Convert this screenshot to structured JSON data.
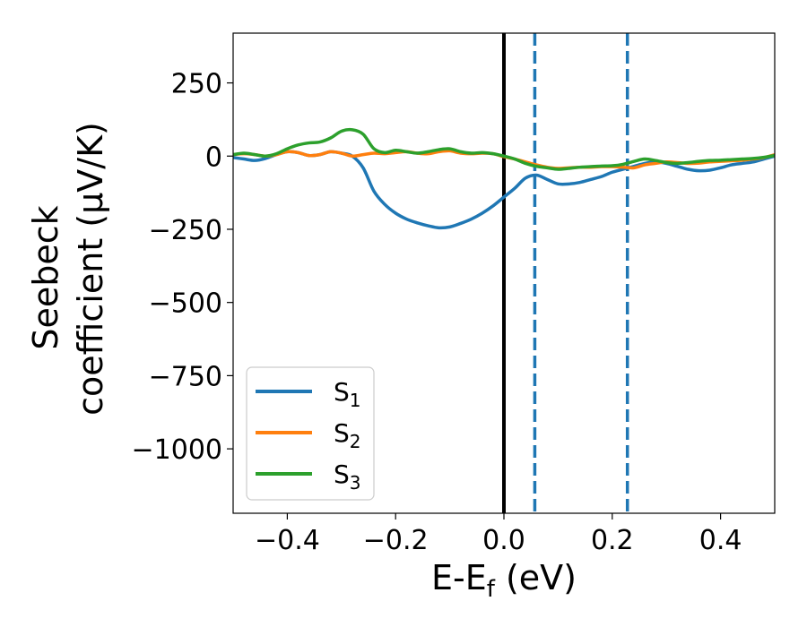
{
  "chart_data": {
    "type": "line",
    "title": "",
    "xlabel": "E-E",
    "xlabel_sub": "f",
    "xlabel_unit": " (eV)",
    "ylabel_line1": "Seebeck",
    "ylabel_line2": "coefficient  (μV/K)",
    "xlim": [
      -0.5,
      0.5
    ],
    "ylim": [
      -1220,
      420
    ],
    "xticks": [
      -0.4,
      -0.2,
      0.0,
      0.2,
      0.4
    ],
    "xtick_labels": [
      "−0.4",
      "−0.2",
      "0.0",
      "0.2",
      "0.4"
    ],
    "yticks": [
      250,
      0,
      -250,
      -500,
      -750,
      -1000
    ],
    "ytick_labels": [
      "250",
      "0",
      "−250",
      "−500",
      "−750",
      "−1000"
    ],
    "grid": false,
    "legend_position": "bottom-left",
    "vlines": [
      {
        "x": 0.0,
        "style": "solid",
        "color": "#000000"
      },
      {
        "x": 0.057,
        "style": "dashed",
        "color": "#1f77b4"
      },
      {
        "x": 0.228,
        "style": "dashed",
        "color": "#1f77b4"
      }
    ],
    "series": [
      {
        "name": "S",
        "sub": "1",
        "color": "#1f77b4",
        "x": [
          -0.5,
          -0.48,
          -0.46,
          -0.44,
          -0.42,
          -0.4,
          -0.38,
          -0.36,
          -0.34,
          -0.32,
          -0.3,
          -0.28,
          -0.26,
          -0.24,
          -0.22,
          -0.2,
          -0.18,
          -0.16,
          -0.14,
          -0.12,
          -0.1,
          -0.08,
          -0.06,
          -0.04,
          -0.02,
          0.0,
          0.02,
          0.04,
          0.06,
          0.08,
          0.1,
          0.12,
          0.14,
          0.16,
          0.18,
          0.2,
          0.22,
          0.24,
          0.26,
          0.28,
          0.3,
          0.32,
          0.34,
          0.36,
          0.38,
          0.4,
          0.42,
          0.44,
          0.46,
          0.48,
          0.5
        ],
        "y": [
          -5,
          -10,
          -15,
          -8,
          5,
          15,
          12,
          2,
          5,
          15,
          10,
          0,
          -40,
          -120,
          -165,
          -195,
          -215,
          -228,
          -238,
          -245,
          -242,
          -230,
          -215,
          -195,
          -170,
          -140,
          -110,
          -75,
          -65,
          -80,
          -95,
          -95,
          -90,
          -80,
          -70,
          -55,
          -45,
          -35,
          -25,
          -20,
          -25,
          -35,
          -45,
          -50,
          -48,
          -40,
          -30,
          -25,
          -20,
          -10,
          0
        ]
      },
      {
        "name": "S",
        "sub": "2",
        "color": "#ff7f0e",
        "x": [
          -0.5,
          -0.48,
          -0.46,
          -0.44,
          -0.42,
          -0.4,
          -0.38,
          -0.36,
          -0.34,
          -0.32,
          -0.3,
          -0.28,
          -0.26,
          -0.24,
          -0.22,
          -0.2,
          -0.18,
          -0.16,
          -0.14,
          -0.12,
          -0.1,
          -0.08,
          -0.06,
          -0.04,
          -0.02,
          0.0,
          0.02,
          0.04,
          0.06,
          0.08,
          0.1,
          0.12,
          0.14,
          0.16,
          0.18,
          0.2,
          0.22,
          0.24,
          0.26,
          0.28,
          0.3,
          0.32,
          0.34,
          0.36,
          0.38,
          0.4,
          0.42,
          0.44,
          0.46,
          0.48,
          0.5
        ],
        "y": [
          5,
          8,
          5,
          0,
          5,
          15,
          12,
          2,
          5,
          15,
          10,
          0,
          5,
          10,
          8,
          12,
          15,
          10,
          8,
          15,
          18,
          10,
          8,
          10,
          8,
          -2,
          -10,
          -20,
          -30,
          -38,
          -42,
          -40,
          -38,
          -38,
          -36,
          -36,
          -38,
          -40,
          -30,
          -25,
          -20,
          -22,
          -25,
          -24,
          -20,
          -18,
          -16,
          -14,
          -10,
          -5,
          5
        ]
      },
      {
        "name": "S",
        "sub": "3",
        "color": "#2ca02c",
        "x": [
          -0.5,
          -0.48,
          -0.46,
          -0.44,
          -0.42,
          -0.4,
          -0.38,
          -0.36,
          -0.34,
          -0.32,
          -0.3,
          -0.28,
          -0.26,
          -0.24,
          -0.22,
          -0.2,
          -0.18,
          -0.16,
          -0.14,
          -0.12,
          -0.1,
          -0.08,
          -0.06,
          -0.04,
          -0.02,
          0.0,
          0.02,
          0.04,
          0.06,
          0.08,
          0.1,
          0.12,
          0.14,
          0.16,
          0.18,
          0.2,
          0.22,
          0.24,
          0.26,
          0.28,
          0.3,
          0.32,
          0.34,
          0.36,
          0.38,
          0.4,
          0.42,
          0.44,
          0.46,
          0.48,
          0.5
        ],
        "y": [
          5,
          10,
          5,
          0,
          8,
          25,
          38,
          45,
          48,
          62,
          85,
          90,
          75,
          25,
          12,
          20,
          15,
          10,
          15,
          22,
          25,
          15,
          10,
          12,
          8,
          0,
          -10,
          -25,
          -35,
          -40,
          -45,
          -42,
          -38,
          -36,
          -34,
          -33,
          -28,
          -18,
          -10,
          -15,
          -22,
          -25,
          -22,
          -18,
          -15,
          -14,
          -12,
          -10,
          -8,
          -4,
          2
        ]
      }
    ]
  }
}
